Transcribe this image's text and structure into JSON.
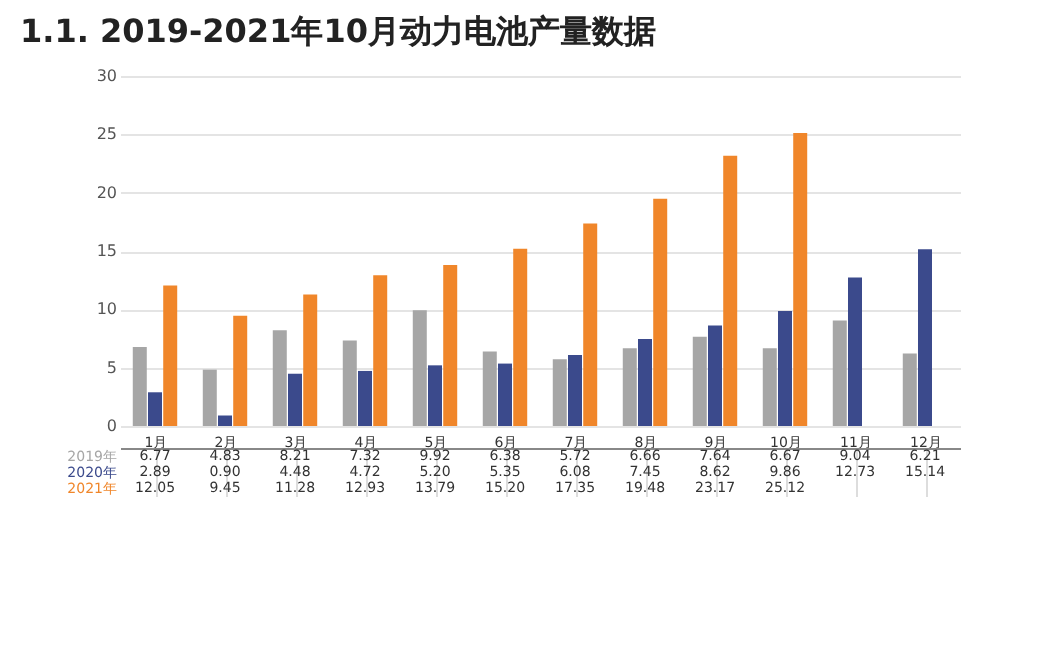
{
  "chart_data": {
    "type": "bar",
    "title": "1.1. 2019-2021年10月动力电池产量数据",
    "categories": [
      "1月",
      "2月",
      "3月",
      "4月",
      "5月",
      "6月",
      "7月",
      "8月",
      "9月",
      "10月",
      "11月",
      "12月"
    ],
    "series": [
      {
        "name": "2019年",
        "color": "#a6a6a6",
        "values": [
          6.77,
          4.83,
          8.21,
          7.32,
          9.92,
          6.38,
          5.72,
          6.66,
          7.64,
          6.67,
          9.04,
          6.21
        ],
        "value_labels": [
          "6.77",
          "4.83",
          "8.21",
          "7.32",
          "9.92",
          "6.38",
          "5.72",
          "6.66",
          "7.64",
          "6.67",
          "9.04",
          "6.21"
        ]
      },
      {
        "name": "2020年",
        "color": "#3b4a8c",
        "values": [
          2.89,
          0.9,
          4.48,
          4.72,
          5.2,
          5.35,
          6.08,
          7.45,
          8.62,
          9.86,
          12.73,
          15.14
        ],
        "value_labels": [
          "2.89",
          "0.90",
          "4.48",
          "4.72",
          "5.20",
          "5.35",
          "6.08",
          "7.45",
          "8.62",
          "9.86",
          "12.73",
          "15.14"
        ]
      },
      {
        "name": "2021年",
        "color": "#f0862a",
        "values": [
          12.05,
          9.45,
          11.28,
          12.93,
          13.79,
          15.2,
          17.35,
          19.48,
          23.17,
          25.12,
          null,
          null
        ],
        "value_labels": [
          "12.05",
          "9.45",
          "11.28",
          "12.93",
          "13.79",
          "15.20",
          "17.35",
          "19.48",
          "23.17",
          "25.12",
          null,
          null
        ]
      }
    ],
    "ylim": [
      0,
      30
    ],
    "yticks": [
      0,
      5,
      10,
      15,
      20,
      25,
      30
    ],
    "grid": "y"
  }
}
